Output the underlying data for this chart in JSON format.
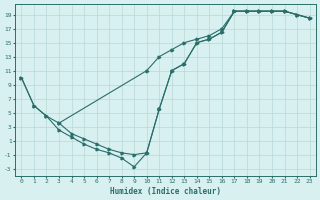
{
  "xlabel": "Humidex (Indice chaleur)",
  "bg_color": "#d8f0f0",
  "grid_color": "#b8d8d8",
  "line_color": "#2a6e6a",
  "xlim": [
    -0.5,
    23.5
  ],
  "ylim": [
    -4,
    20.5
  ],
  "xticks": [
    0,
    1,
    2,
    3,
    4,
    5,
    6,
    7,
    8,
    9,
    10,
    11,
    12,
    13,
    14,
    15,
    16,
    17,
    18,
    19,
    20,
    21,
    22,
    23
  ],
  "yticks": [
    -3,
    -1,
    1,
    3,
    5,
    7,
    9,
    11,
    13,
    15,
    17,
    19
  ],
  "line1_x": [
    0,
    1,
    2,
    3,
    10,
    11,
    12,
    13,
    14,
    15,
    16,
    17,
    18,
    19,
    20,
    21,
    22,
    23
  ],
  "line1_y": [
    10,
    6,
    4.5,
    3.5,
    11,
    13,
    14,
    15,
    15.5,
    16,
    17,
    19.5,
    19.5,
    19.5,
    19.5,
    19.5,
    19,
    18.5
  ],
  "line2_x": [
    0,
    1,
    2,
    3,
    4,
    5,
    6,
    7,
    8,
    9,
    10,
    11,
    12,
    13,
    14,
    15,
    16,
    17,
    18,
    19,
    20,
    21,
    22,
    23
  ],
  "line2_y": [
    10,
    6,
    4.5,
    2.5,
    1.5,
    0.5,
    -0.25,
    -0.75,
    -1.5,
    -2.75,
    -0.75,
    5.5,
    11,
    12,
    15,
    15.5,
    16.5,
    19.5,
    19.5,
    19.5,
    19.5,
    19.5,
    19,
    18.5
  ],
  "line3_x": [
    3,
    4,
    5,
    6,
    7,
    8,
    9,
    10,
    11,
    12,
    13,
    14,
    15,
    16,
    17,
    18,
    19,
    20,
    21,
    22,
    23
  ],
  "line3_y": [
    3.5,
    2,
    1.25,
    0.5,
    -0.25,
    -0.75,
    -1.0,
    -0.75,
    5.5,
    11,
    12,
    15,
    15.5,
    16.5,
    19.5,
    19.5,
    19.5,
    19.5,
    19.5,
    19,
    18.5
  ]
}
